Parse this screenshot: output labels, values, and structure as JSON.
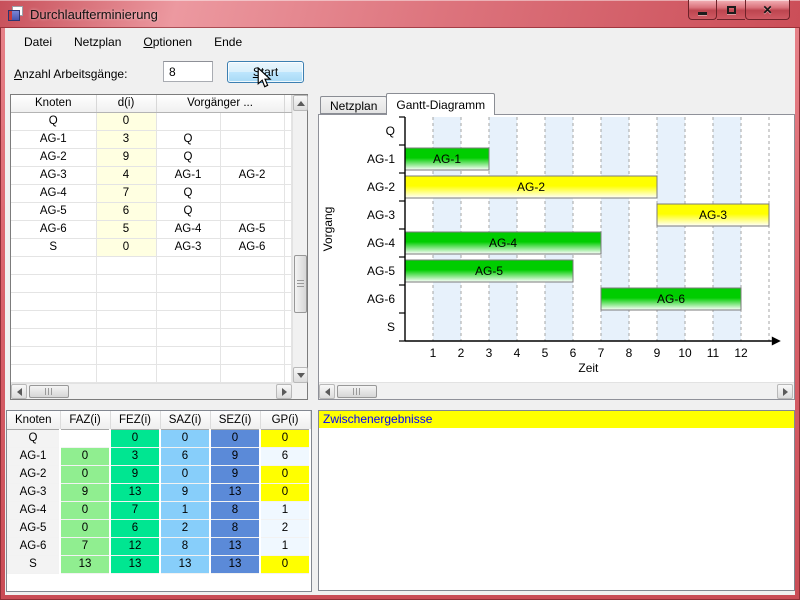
{
  "window": {
    "title": "Durchlaufterminierung",
    "buttons": {
      "minimize": "minimize",
      "maximize": "maximize",
      "close": "close"
    }
  },
  "menu": {
    "items": [
      {
        "id": "datei",
        "label": "Datei",
        "accel": null
      },
      {
        "id": "netzplan",
        "label": "Netzplan",
        "accel": null
      },
      {
        "id": "optionen",
        "label": "Optionen",
        "accel": 0
      },
      {
        "id": "ende",
        "label": "Ende",
        "accel": null
      }
    ]
  },
  "toolbar": {
    "count_label": {
      "label": "Anzahl Arbeitsgänge:",
      "accel": 0
    },
    "count_value": "8",
    "start_button": {
      "label": "Start",
      "accel": 0
    }
  },
  "nodes_table": {
    "headers": {
      "knoten": "Knoten",
      "d": "d(i)",
      "vorgaenger": "Vorgänger ..."
    },
    "d_col_bg": "#FFFFE1",
    "rows": [
      {
        "knoten": "Q",
        "d": "0",
        "v1": "",
        "v2": ""
      },
      {
        "knoten": "AG-1",
        "d": "3",
        "v1": "Q",
        "v2": ""
      },
      {
        "knoten": "AG-2",
        "d": "9",
        "v1": "Q",
        "v2": ""
      },
      {
        "knoten": "AG-3",
        "d": "4",
        "v1": "AG-1",
        "v2": "AG-2"
      },
      {
        "knoten": "AG-4",
        "d": "7",
        "v1": "Q",
        "v2": ""
      },
      {
        "knoten": "AG-5",
        "d": "6",
        "v1": "Q",
        "v2": ""
      },
      {
        "knoten": "AG-6",
        "d": "5",
        "v1": "AG-4",
        "v2": "AG-5"
      },
      {
        "knoten": "S",
        "d": "0",
        "v1": "AG-3",
        "v2": "AG-6"
      }
    ],
    "empty_rows": 7
  },
  "tabs": [
    {
      "label": "Netzplan",
      "active": false
    },
    {
      "label": "Gantt-Diagramm",
      "active": true
    }
  ],
  "chart_data": {
    "type": "bar",
    "variant": "gantt",
    "title": "",
    "xlabel": "Zeit",
    "ylabel": "Vorgang",
    "categories": [
      "Q",
      "AG-1",
      "AG-2",
      "AG-3",
      "AG-4",
      "AG-5",
      "AG-6",
      "S"
    ],
    "xticks": [
      1,
      2,
      3,
      4,
      5,
      6,
      7,
      8,
      9,
      10,
      11,
      12
    ],
    "xlim": [
      0,
      13.1
    ],
    "bars": [
      {
        "name": "AG-1",
        "row": "AG-1",
        "start": 0,
        "end": 3,
        "color": "green"
      },
      {
        "name": "AG-2",
        "row": "AG-2",
        "start": 0,
        "end": 9,
        "color": "yellow"
      },
      {
        "name": "AG-3",
        "row": "AG-3",
        "start": 9,
        "end": 13,
        "color": "yellow"
      },
      {
        "name": "AG-4",
        "row": "AG-4",
        "start": 0,
        "end": 7,
        "color": "green"
      },
      {
        "name": "AG-5",
        "row": "AG-5",
        "start": 0,
        "end": 6,
        "color": "green"
      },
      {
        "name": "AG-6",
        "row": "AG-6",
        "start": 7,
        "end": 12,
        "color": "green"
      }
    ],
    "bar_colors": {
      "green": "#00CD00",
      "yellow": "#FFFF00"
    },
    "stripes": [
      [
        1,
        2
      ],
      [
        3,
        4
      ],
      [
        5,
        6
      ],
      [
        7,
        8
      ],
      [
        9,
        10
      ],
      [
        11,
        12
      ]
    ],
    "stripe_color": "#E7F1FB",
    "gridline_ticks": [
      1,
      2,
      3,
      4,
      5,
      6,
      7,
      8,
      9,
      10,
      11,
      12,
      13
    ],
    "grid": true,
    "legend": null
  },
  "results_table": {
    "headers": [
      "Knoten",
      "FAZ(i)",
      "FEZ(i)",
      "SAZ(i)",
      "SEZ(i)",
      "GP(i)"
    ],
    "rows": [
      {
        "knoten": "Q",
        "faz": "",
        "fez": "0",
        "saz": "0",
        "sez": "0",
        "gp": "0"
      },
      {
        "knoten": "AG-1",
        "faz": "0",
        "fez": "3",
        "saz": "6",
        "sez": "9",
        "gp": "6"
      },
      {
        "knoten": "AG-2",
        "faz": "0",
        "fez": "9",
        "saz": "0",
        "sez": "9",
        "gp": "0"
      },
      {
        "knoten": "AG-3",
        "faz": "9",
        "fez": "13",
        "saz": "9",
        "sez": "13",
        "gp": "0"
      },
      {
        "knoten": "AG-4",
        "faz": "0",
        "fez": "7",
        "saz": "1",
        "sez": "8",
        "gp": "1"
      },
      {
        "knoten": "AG-5",
        "faz": "0",
        "fez": "6",
        "saz": "2",
        "sez": "8",
        "gp": "2"
      },
      {
        "knoten": "AG-6",
        "faz": "7",
        "fez": "12",
        "saz": "8",
        "sez": "13",
        "gp": "1"
      },
      {
        "knoten": "S",
        "faz": "13",
        "fez": "13",
        "saz": "13",
        "sez": "13",
        "gp": "0"
      }
    ],
    "colors": {
      "faz": "#90EE90",
      "fez": "#00E691",
      "saz": "#87CEFA",
      "sez": "#5B8AD8",
      "gp_zero": "#FFFF00",
      "gp_nonzero": "#F0F8FF",
      "knoten_bg": "#F3F3F3",
      "empty": "#FFFFFF"
    }
  },
  "results_panel": {
    "title": "Zwischenergebnisse",
    "title_color": "#0000FF",
    "title_bg": "#FFFF00"
  }
}
